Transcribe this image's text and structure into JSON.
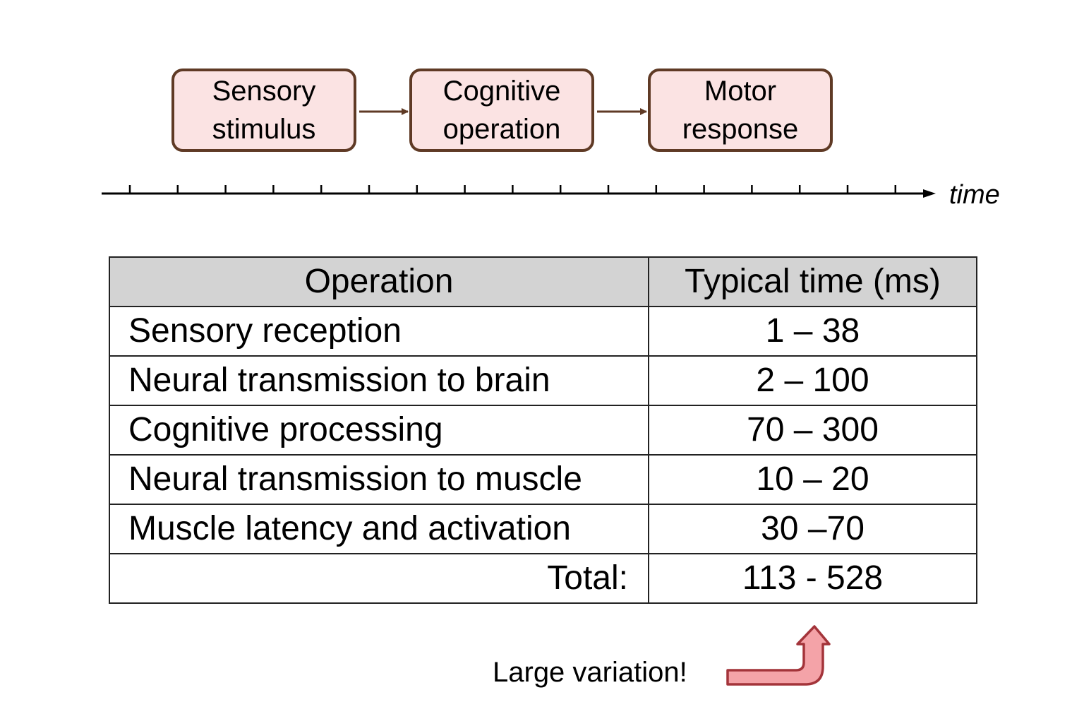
{
  "flow": {
    "boxes": [
      {
        "line1": "Sensory",
        "line2": "stimulus"
      },
      {
        "line1": "Cognitive",
        "line2": "operation"
      },
      {
        "line1": "Motor",
        "line2": "response"
      }
    ],
    "box_fill": "#fbe3e3",
    "box_border": "#5f3a25"
  },
  "timeline": {
    "label": "time"
  },
  "table": {
    "headers": [
      "Operation",
      "Typical time (ms)"
    ],
    "rows": [
      {
        "operation": "Sensory reception",
        "time": "1 – 38"
      },
      {
        "operation": "Neural transmission to brain",
        "time": "2 – 100"
      },
      {
        "operation": "Cognitive processing",
        "time": "70 – 300"
      },
      {
        "operation": "Neural transmission to muscle",
        "time": "10 – 20"
      },
      {
        "operation": "Muscle latency and activation",
        "time": "30 –70"
      }
    ],
    "total": {
      "label": "Total:",
      "time": "113 - 528"
    },
    "header_fill": "#d3d3d3"
  },
  "annotation": {
    "text": "Large variation!",
    "arrow_fill": "#f4a3a8",
    "arrow_stroke": "#a3343a"
  }
}
